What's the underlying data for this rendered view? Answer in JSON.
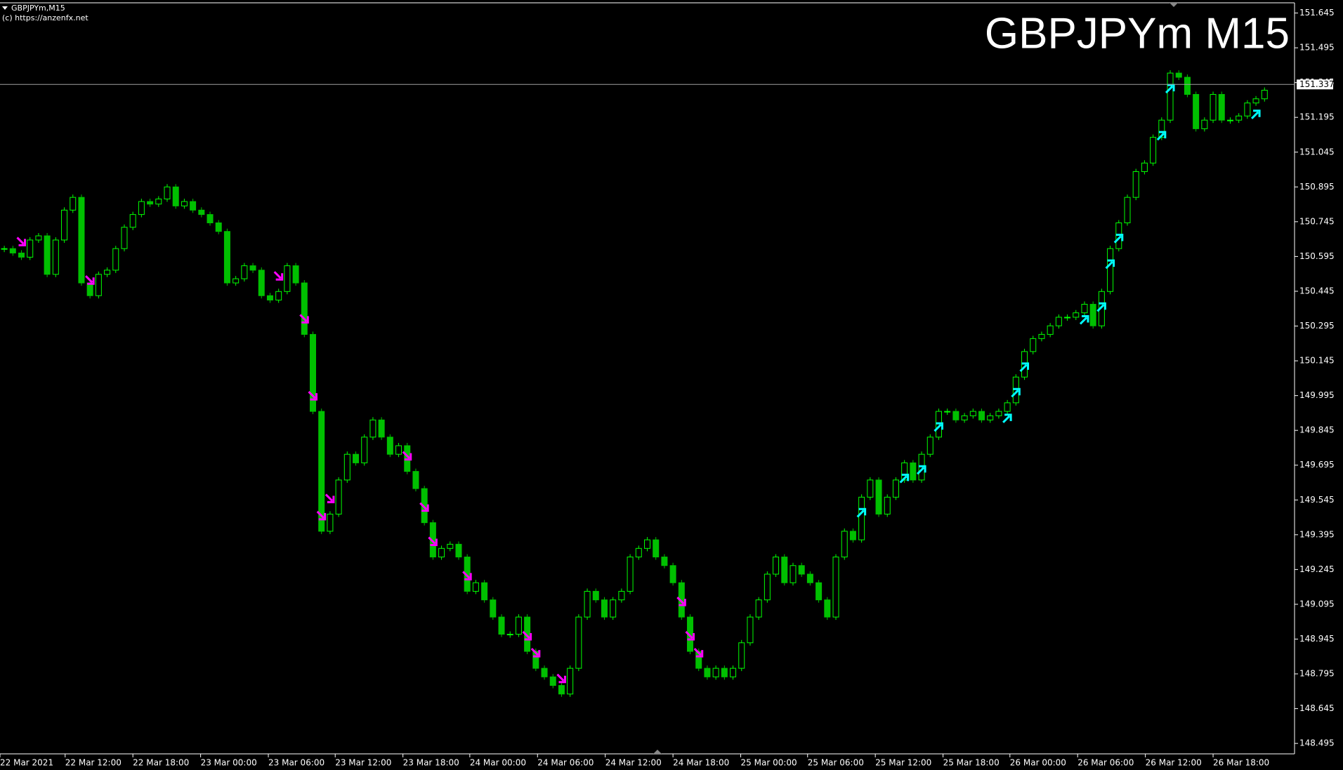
{
  "chart_data": {
    "type": "candlestick",
    "title": "GBPJPYm M15",
    "symbol_label": "GBPJPYm,M15",
    "copyright": "(c) https://anzenfx.net",
    "bull_color": "#00ff00",
    "bear_color": "#00c000",
    "buy_color": "#00ffff",
    "sell_color": "#ff00ff",
    "close": [
      150.629,
      150.61,
      150.592,
      150.666,
      150.684,
      150.518,
      150.666,
      150.795,
      150.85,
      150.481,
      150.426,
      150.518,
      150.536,
      150.629,
      150.721,
      150.776,
      150.832,
      150.821,
      150.843,
      150.895,
      150.813,
      150.832,
      150.795,
      150.776,
      150.74,
      150.703,
      150.481,
      150.499,
      150.555,
      150.536,
      150.426,
      150.407,
      150.444,
      150.555,
      150.481,
      150.259,
      149.927,
      149.41,
      149.484,
      149.631,
      149.742,
      149.705,
      149.816,
      149.89,
      149.816,
      149.742,
      149.779,
      149.668,
      149.594,
      149.447,
      149.299,
      149.336,
      149.354,
      149.299,
      149.151,
      149.188,
      149.114,
      149.04,
      148.966,
      148.966,
      149.04,
      148.892,
      148.819,
      148.782,
      148.745,
      148.708,
      148.819,
      149.04,
      149.151,
      149.114,
      149.04,
      149.114,
      149.151,
      149.299,
      149.336,
      149.373,
      149.299,
      149.262,
      149.188,
      149.04,
      148.892,
      148.819,
      148.782,
      148.819,
      148.782,
      148.819,
      148.929,
      149.04,
      149.114,
      149.225,
      149.299,
      149.188,
      149.262,
      149.225,
      149.188,
      149.114,
      149.04,
      149.299,
      149.41,
      149.373,
      149.557,
      149.631,
      149.484,
      149.557,
      149.631,
      149.705,
      149.631,
      149.742,
      149.816,
      149.927,
      149.927,
      149.89,
      149.908,
      149.927,
      149.89,
      149.908,
      149.927,
      149.964,
      150.075,
      150.185,
      150.241,
      150.259,
      150.296,
      150.333,
      150.333,
      150.352,
      150.389,
      150.296,
      150.444,
      150.629,
      150.74,
      150.85,
      150.961,
      150.998,
      151.109,
      151.183,
      151.386,
      151.368,
      151.294,
      151.146,
      151.183,
      151.294,
      151.183,
      151.183,
      151.201,
      151.257,
      151.275,
      151.312
    ],
    "sell_signals": [
      2,
      10,
      32,
      35,
      36,
      37,
      38,
      47,
      49,
      50,
      54,
      61,
      62,
      65,
      79,
      80,
      81
    ],
    "buy_signals": [
      100,
      105,
      107,
      109,
      117,
      118,
      119,
      126,
      128,
      129,
      130,
      135,
      136,
      146
    ],
    "current_price": 151.337,
    "xlim": [
      0,
      151
    ],
    "xticks": [
      {
        "value": 0,
        "label": "22 Mar 2021"
      },
      {
        "value": 7.6,
        "label": "22 Mar 12:00"
      },
      {
        "value": 15.5,
        "label": "22 Mar 18:00"
      },
      {
        "value": 23.4,
        "label": "23 Mar 00:00"
      },
      {
        "value": 31.3,
        "label": "23 Mar 06:00"
      },
      {
        "value": 39.1,
        "label": "23 Mar 12:00"
      },
      {
        "value": 47,
        "label": "23 Mar 18:00"
      },
      {
        "value": 54.8,
        "label": "24 Mar 00:00"
      },
      {
        "value": 62.7,
        "label": "24 Mar 06:00"
      },
      {
        "value": 70.6,
        "label": "24 Mar 12:00"
      },
      {
        "value": 78.5,
        "label": "24 Mar 18:00"
      },
      {
        "value": 86.4,
        "label": "25 Mar 00:00"
      },
      {
        "value": 94.2,
        "label": "25 Mar 06:00"
      },
      {
        "value": 102.1,
        "label": "25 Mar 12:00"
      },
      {
        "value": 110,
        "label": "25 Mar 18:00"
      },
      {
        "value": 117.8,
        "label": "26 Mar 00:00"
      },
      {
        "value": 125.7,
        "label": "26 Mar 06:00"
      },
      {
        "value": 133.6,
        "label": "26 Mar 12:00"
      },
      {
        "value": 141.5,
        "label": "26 Mar 18:00"
      }
    ],
    "ylim": [
      148.45,
      151.686
    ],
    "yticks": [
      151.645,
      151.495,
      151.345,
      151.195,
      151.045,
      150.895,
      150.745,
      150.595,
      150.445,
      150.295,
      150.145,
      149.995,
      149.845,
      149.695,
      149.545,
      149.395,
      149.245,
      149.095,
      148.945,
      148.795,
      148.645,
      148.495
    ]
  }
}
